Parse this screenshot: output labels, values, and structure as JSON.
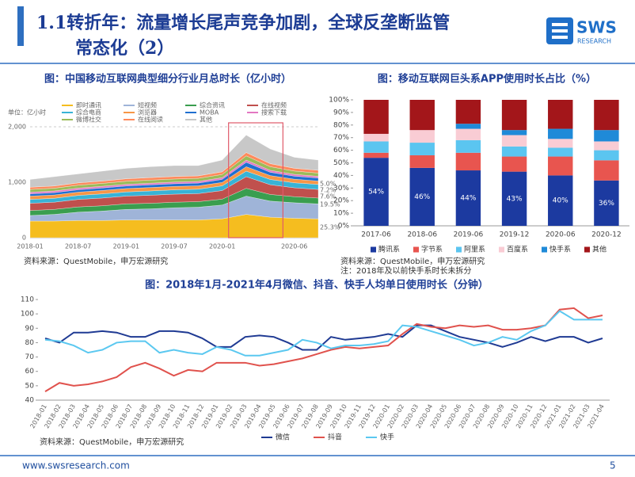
{
  "header": {
    "title_line1": "1.1转折年：流量增长尾声竞争加剧，全球反垄断监管",
    "title_line2": "常态化（2）",
    "logo": "SWS",
    "logo_sub": "RESEARCH"
  },
  "footer": {
    "url": "www.swsresearch.com",
    "page": "5"
  },
  "chart_data": [
    {
      "type": "area",
      "title": "图：中国移动互联网典型细分行业月总时长（亿小时）",
      "unit": "单位：亿小时",
      "source": "资料来源：QuestMobile，申万宏源研究",
      "categories": [
        "2018-01",
        null,
        "2018-07",
        null,
        "2019-01",
        null,
        "2019-07",
        null,
        "2020-01",
        null,
        null,
        "2020-06",
        null
      ],
      "ylim": [
        0,
        2000
      ],
      "yticks": [
        0,
        {
          "value": 1000,
          "label": "1,000"
        },
        {
          "value": 2000,
          "label": "2,000"
        }
      ],
      "grid": true,
      "annotations": [
        "5.0%",
        "7.2%",
        "7.6%",
        "19.5%",
        "25.3%"
      ],
      "series": [
        {
          "name": "即时通讯",
          "color": "#f5bd1f",
          "values": [
            300,
            300,
            310,
            310,
            320,
            320,
            320,
            320,
            340,
            420,
            370,
            350,
            340
          ]
        },
        {
          "name": "短视频",
          "color": "#9fb4d8",
          "values": [
            100,
            120,
            150,
            170,
            190,
            200,
            220,
            230,
            250,
            330,
            290,
            280,
            270
          ]
        },
        {
          "name": "综合资讯",
          "color": "#3a9e4f",
          "values": [
            90,
            90,
            95,
            95,
            100,
            100,
            100,
            100,
            105,
            140,
            120,
            110,
            105
          ]
        },
        {
          "name": "在线视频",
          "color": "#c0504d",
          "values": [
            130,
            130,
            135,
            140,
            140,
            145,
            145,
            145,
            155,
            210,
            175,
            160,
            155
          ]
        },
        {
          "name": "综合电商",
          "color": "#38b3d6",
          "values": [
            70,
            70,
            72,
            75,
            75,
            78,
            78,
            80,
            85,
            100,
            95,
            90,
            90
          ]
        },
        {
          "name": "浏览器",
          "color": "#f79646",
          "values": [
            60,
            60,
            60,
            62,
            62,
            62,
            62,
            60,
            62,
            80,
            70,
            65,
            62
          ]
        },
        {
          "name": "MOBA",
          "color": "#1f6fd0",
          "values": [
            40,
            42,
            42,
            45,
            45,
            48,
            48,
            50,
            55,
            80,
            60,
            55,
            55
          ]
        },
        {
          "name": "搜索下载",
          "color": "#e377c2",
          "values": [
            30,
            30,
            30,
            30,
            30,
            30,
            30,
            30,
            30,
            40,
            35,
            32,
            30
          ]
        },
        {
          "name": "微博社交",
          "color": "#9bbb59",
          "values": [
            50,
            50,
            52,
            52,
            55,
            55,
            55,
            55,
            58,
            75,
            65,
            60,
            58
          ]
        },
        {
          "name": "在线阅读",
          "color": "#ff8a5c",
          "values": [
            40,
            40,
            42,
            42,
            45,
            45,
            45,
            45,
            48,
            60,
            55,
            50,
            50
          ]
        },
        {
          "name": "其他",
          "color": "#c8c8c8",
          "values": [
            140,
            168,
            162,
            179,
            188,
            197,
            197,
            185,
            212,
            315,
            265,
            198,
            185
          ]
        }
      ]
    },
    {
      "type": "bar",
      "title": "图：移动互联网巨头系APP使用时长占比（%）",
      "source": "资料来源：QuestMobile，申万宏源研究",
      "note": "注：2018年及以前快手系时长未拆分",
      "categories": [
        "2017-06",
        "2018-06",
        "2019-06",
        "2019-12",
        "2020-06",
        "2020-12"
      ],
      "ylim": [
        0,
        100
      ],
      "yticks": [
        {
          "value": 0,
          "label": "0%"
        },
        {
          "value": 10,
          "label": "10%"
        },
        {
          "value": 20,
          "label": "20%"
        },
        {
          "value": 30,
          "label": "30%"
        },
        {
          "value": 40,
          "label": "40%"
        },
        {
          "value": 50,
          "label": "50%"
        },
        {
          "value": 60,
          "label": "60%"
        },
        {
          "value": 70,
          "label": "70%"
        },
        {
          "value": 80,
          "label": "80%"
        },
        {
          "value": 90,
          "label": "90%"
        },
        {
          "value": 100,
          "label": "100%"
        }
      ],
      "grid": false,
      "series": [
        {
          "name": "腾讯系",
          "color": "#1c3aa0",
          "values": [
            54,
            46,
            44,
            43,
            40,
            36
          ],
          "value_labels": [
            "54%",
            "46%",
            "44%",
            "43%",
            "40%",
            "36%"
          ]
        },
        {
          "name": "字节系",
          "color": "#e8554f",
          "values": [
            4,
            10,
            14,
            12,
            15,
            16
          ]
        },
        {
          "name": "阿里系",
          "color": "#5bc5f0",
          "values": [
            9,
            10,
            10,
            8,
            7,
            8
          ]
        },
        {
          "name": "百度系",
          "color": "#f9ccd4",
          "values": [
            6,
            10,
            9,
            9,
            7,
            7
          ]
        },
        {
          "name": "快手系",
          "color": "#1f8ad8",
          "values": [
            0,
            0,
            4,
            4,
            8,
            9
          ]
        },
        {
          "name": "其他",
          "color": "#a3161a",
          "values": [
            27,
            24,
            19,
            24,
            23,
            24
          ]
        }
      ]
    },
    {
      "type": "line",
      "title": "图：2018年1月-2021年4月微信、抖音、快手人均单日使用时长（分钟）",
      "source": "资料来源：QuestMobile，申万宏源研究",
      "categories": [
        "2018-01",
        "2018-02",
        "2018-03",
        "2018-04",
        "2018-05",
        "2018-06",
        "2018-07",
        "2018-08",
        "2018-09",
        "2018-10",
        "2018-11",
        "2018-12",
        "2019-01",
        "2019-02",
        "2019-03",
        "2019-04",
        "2019-05",
        "2019-06",
        "2019-07",
        "2019-08",
        "2019-09",
        "2019-10",
        "2019-11",
        "2019-12",
        "2020-01",
        "2020-02",
        "2020-03",
        "2020-04",
        "2020-05",
        "2020-06",
        "2020-07",
        "2020-08",
        "2020-09",
        "2020-10",
        "2020-11",
        "2020-12",
        "2021-01",
        "2021-02",
        "2021-03",
        "2021-04"
      ],
      "ylim": [
        40,
        110
      ],
      "yticks": [
        40,
        50,
        60,
        70,
        80,
        90,
        100,
        110
      ],
      "grid": false,
      "series": [
        {
          "name": "微信",
          "color": "#1f3a93",
          "values": [
            83,
            80,
            87,
            87,
            88,
            87,
            84,
            84,
            88,
            88,
            87,
            83,
            77,
            77,
            84,
            85,
            84,
            80,
            75,
            75,
            84,
            82,
            83,
            84,
            86,
            84,
            92,
            92,
            88,
            84,
            82,
            80,
            77,
            80,
            84,
            81,
            84,
            84,
            80,
            83
          ]
        },
        {
          "name": "抖音",
          "color": "#e0524d",
          "values": [
            46,
            52,
            50,
            51,
            53,
            56,
            63,
            66,
            62,
            57,
            61,
            60,
            66,
            66,
            66,
            64,
            65,
            67,
            69,
            72,
            75,
            77,
            76,
            77,
            78,
            86,
            93,
            91,
            90,
            92,
            91,
            92,
            89,
            89,
            90,
            92,
            103,
            104,
            97,
            99
          ]
        },
        {
          "name": "快手",
          "color": "#5bc8f0",
          "values": [
            82,
            81,
            78,
            73,
            75,
            80,
            81,
            81,
            73,
            75,
            73,
            72,
            77,
            75,
            71,
            71,
            73,
            75,
            82,
            80,
            76,
            78,
            78,
            79,
            81,
            92,
            91,
            88,
            85,
            82,
            78,
            80,
            84,
            82,
            88,
            92,
            102,
            96,
            96,
            96
          ]
        }
      ]
    }
  ]
}
